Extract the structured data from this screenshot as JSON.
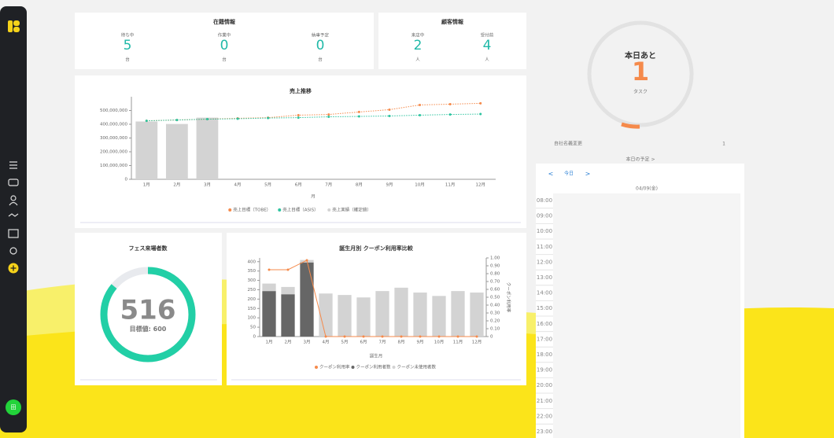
{
  "stock": {
    "title": "在籍情報",
    "items": [
      {
        "label": "待ち中",
        "value": 5,
        "unit": "台"
      },
      {
        "label": "作業中",
        "value": 0,
        "unit": "台"
      },
      {
        "label": "納車予定",
        "value": 0,
        "unit": "台"
      }
    ]
  },
  "customers": {
    "title": "顧客情報",
    "items": [
      {
        "label": "来店中",
        "value": 2,
        "unit": "人"
      },
      {
        "label": "受付前",
        "value": 4,
        "unit": "人"
      }
    ]
  },
  "chart_data": [
    {
      "type": "bar",
      "title": "売上推移",
      "x_label": "月",
      "categories": [
        "1月",
        "2月",
        "3月",
        "4月",
        "5月",
        "6月",
        "7月",
        "8月",
        "9月",
        "10月",
        "11月",
        "12月"
      ],
      "ylim": [
        0,
        600000000
      ],
      "yticks": [
        0,
        {
          "value": 100000000,
          "label": "100,000,000"
        },
        {
          "value": 200000000,
          "label": "200,000,000"
        },
        {
          "value": 300000000,
          "label": "300,000,000"
        },
        {
          "value": 400000000,
          "label": "400,000,000"
        },
        {
          "value": 500000000,
          "label": "500,000,000"
        }
      ],
      "series": [
        {
          "name": "売上目標（TOBE）",
          "type": "line",
          "color": "#f58a4b",
          "values": [
            425000000,
            431000000,
            437000000,
            443000000,
            448000000,
            466000000,
            471000000,
            489000000,
            506000000,
            540000000,
            546000000,
            552000000
          ]
        },
        {
          "name": "売上目標（ASIS）",
          "type": "line",
          "color": "#2ec4a0",
          "values": [
            425000000,
            431000000,
            437000000,
            440000000,
            445000000,
            448000000,
            454000000,
            457000000,
            460000000,
            466000000,
            471000000,
            474000000
          ]
        },
        {
          "name": "売上実績（確定値）",
          "type": "bar",
          "color": "#d3d3d3",
          "values": [
            420000000,
            402000000,
            448000000,
            null,
            null,
            null,
            null,
            null,
            null,
            null,
            null,
            null
          ]
        }
      ]
    },
    {
      "type": "bar",
      "stacked": true,
      "title": "誕生月別 クーポン利用率比較",
      "x_label": "誕生月",
      "y2_label": "クーポン利用率",
      "categories": [
        "1月",
        "2月",
        "3月",
        "4月",
        "5月",
        "6月",
        "7月",
        "8月",
        "9月",
        "10月",
        "11月",
        "12月"
      ],
      "ylim": [
        0,
        420
      ],
      "yticks": [
        0,
        50,
        100,
        150,
        200,
        250,
        300,
        350,
        400
      ],
      "y2lim": [
        0,
        1.0
      ],
      "y2ticks": [
        0,
        {
          "value": 0.1,
          "label": "0.10"
        },
        {
          "value": 0.2,
          "label": "0.20"
        },
        {
          "value": 0.3,
          "label": "0.30"
        },
        {
          "value": 0.4,
          "label": "0.40"
        },
        {
          "value": 0.5,
          "label": "0.50"
        },
        {
          "value": 0.6,
          "label": "0.60"
        },
        {
          "value": 0.7,
          "label": "0.70"
        },
        {
          "value": 0.8,
          "label": "0.80"
        },
        {
          "value": 0.9,
          "label": "0.90"
        },
        {
          "value": 1.0,
          "label": "1.00"
        }
      ],
      "series": [
        {
          "name": "クーポン利用率",
          "type": "line",
          "axis": "y2",
          "color": "#f58a4b",
          "values": [
            0.85,
            0.85,
            0.97,
            0,
            0,
            0,
            0,
            0,
            0,
            0,
            0,
            0
          ]
        },
        {
          "name": "クーポン利用者数",
          "type": "bar",
          "color": "#666666",
          "values": [
            243,
            226,
            396,
            0,
            0,
            0,
            0,
            0,
            0,
            0,
            0,
            0
          ]
        },
        {
          "name": "クーポン未使用者数",
          "type": "bar",
          "color": "#d3d3d3",
          "values": [
            40,
            39,
            13,
            230,
            222,
            209,
            243,
            261,
            235,
            217,
            243,
            235
          ]
        }
      ]
    }
  ],
  "fes": {
    "title": "フェス来場者数",
    "value": 516,
    "target_label": "目標値:",
    "target": 600
  },
  "tasks": {
    "label": "本日あと",
    "value": 1,
    "unit": "タスク"
  },
  "orders": {
    "label": "自社名義変更",
    "value": 1
  },
  "schedule": {
    "link": "本日の予定 >",
    "prev": "<",
    "today": "今日",
    "next": ">",
    "date": "04/09(金)",
    "times": [
      "08:00",
      "09:00",
      "10:00",
      "11:00",
      "12:00",
      "13:00",
      "14:00",
      "15:00",
      "16:00",
      "17:00",
      "18:00",
      "19:00",
      "20:00",
      "21:00",
      "22:00",
      "23:00"
    ]
  },
  "user": {
    "initial": "田"
  }
}
